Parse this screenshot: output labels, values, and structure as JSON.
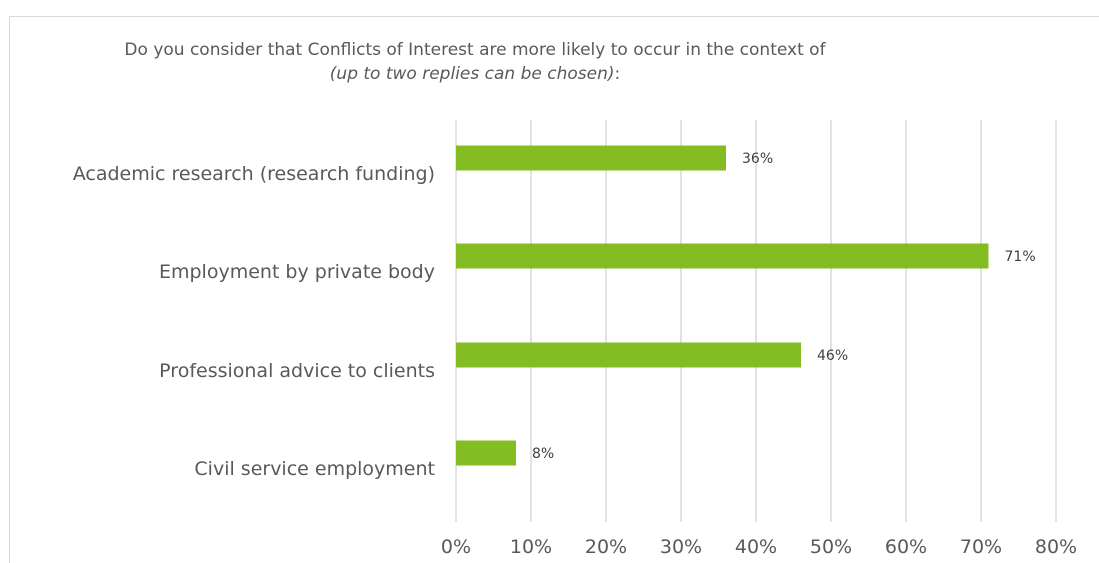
{
  "chart_data": {
    "type": "bar",
    "orientation": "horizontal",
    "title": "Do you consider that Conflicts of Interest are more likely to occur in the context of",
    "title_note": "(up to two replies can be chosen)",
    "title_suffix": ":",
    "categories": [
      "Academic research (research funding)",
      "Employment by private body",
      "Professional advice to clients",
      "Civil service employment"
    ],
    "values": [
      36,
      71,
      46,
      8
    ],
    "value_labels": [
      "36%",
      "71%",
      "46%",
      "8%"
    ],
    "xlim": [
      0,
      80
    ],
    "x_ticks": [
      0,
      10,
      20,
      30,
      40,
      50,
      60,
      70,
      80
    ],
    "x_tick_labels": [
      "0%",
      "10%",
      "20%",
      "30%",
      "40%",
      "50%",
      "60%",
      "70%",
      "80%"
    ],
    "grid": true,
    "legend": "none",
    "colors": {
      "bar": "#84bd22",
      "grid": "#d9d9d9",
      "text": "#595959"
    }
  }
}
